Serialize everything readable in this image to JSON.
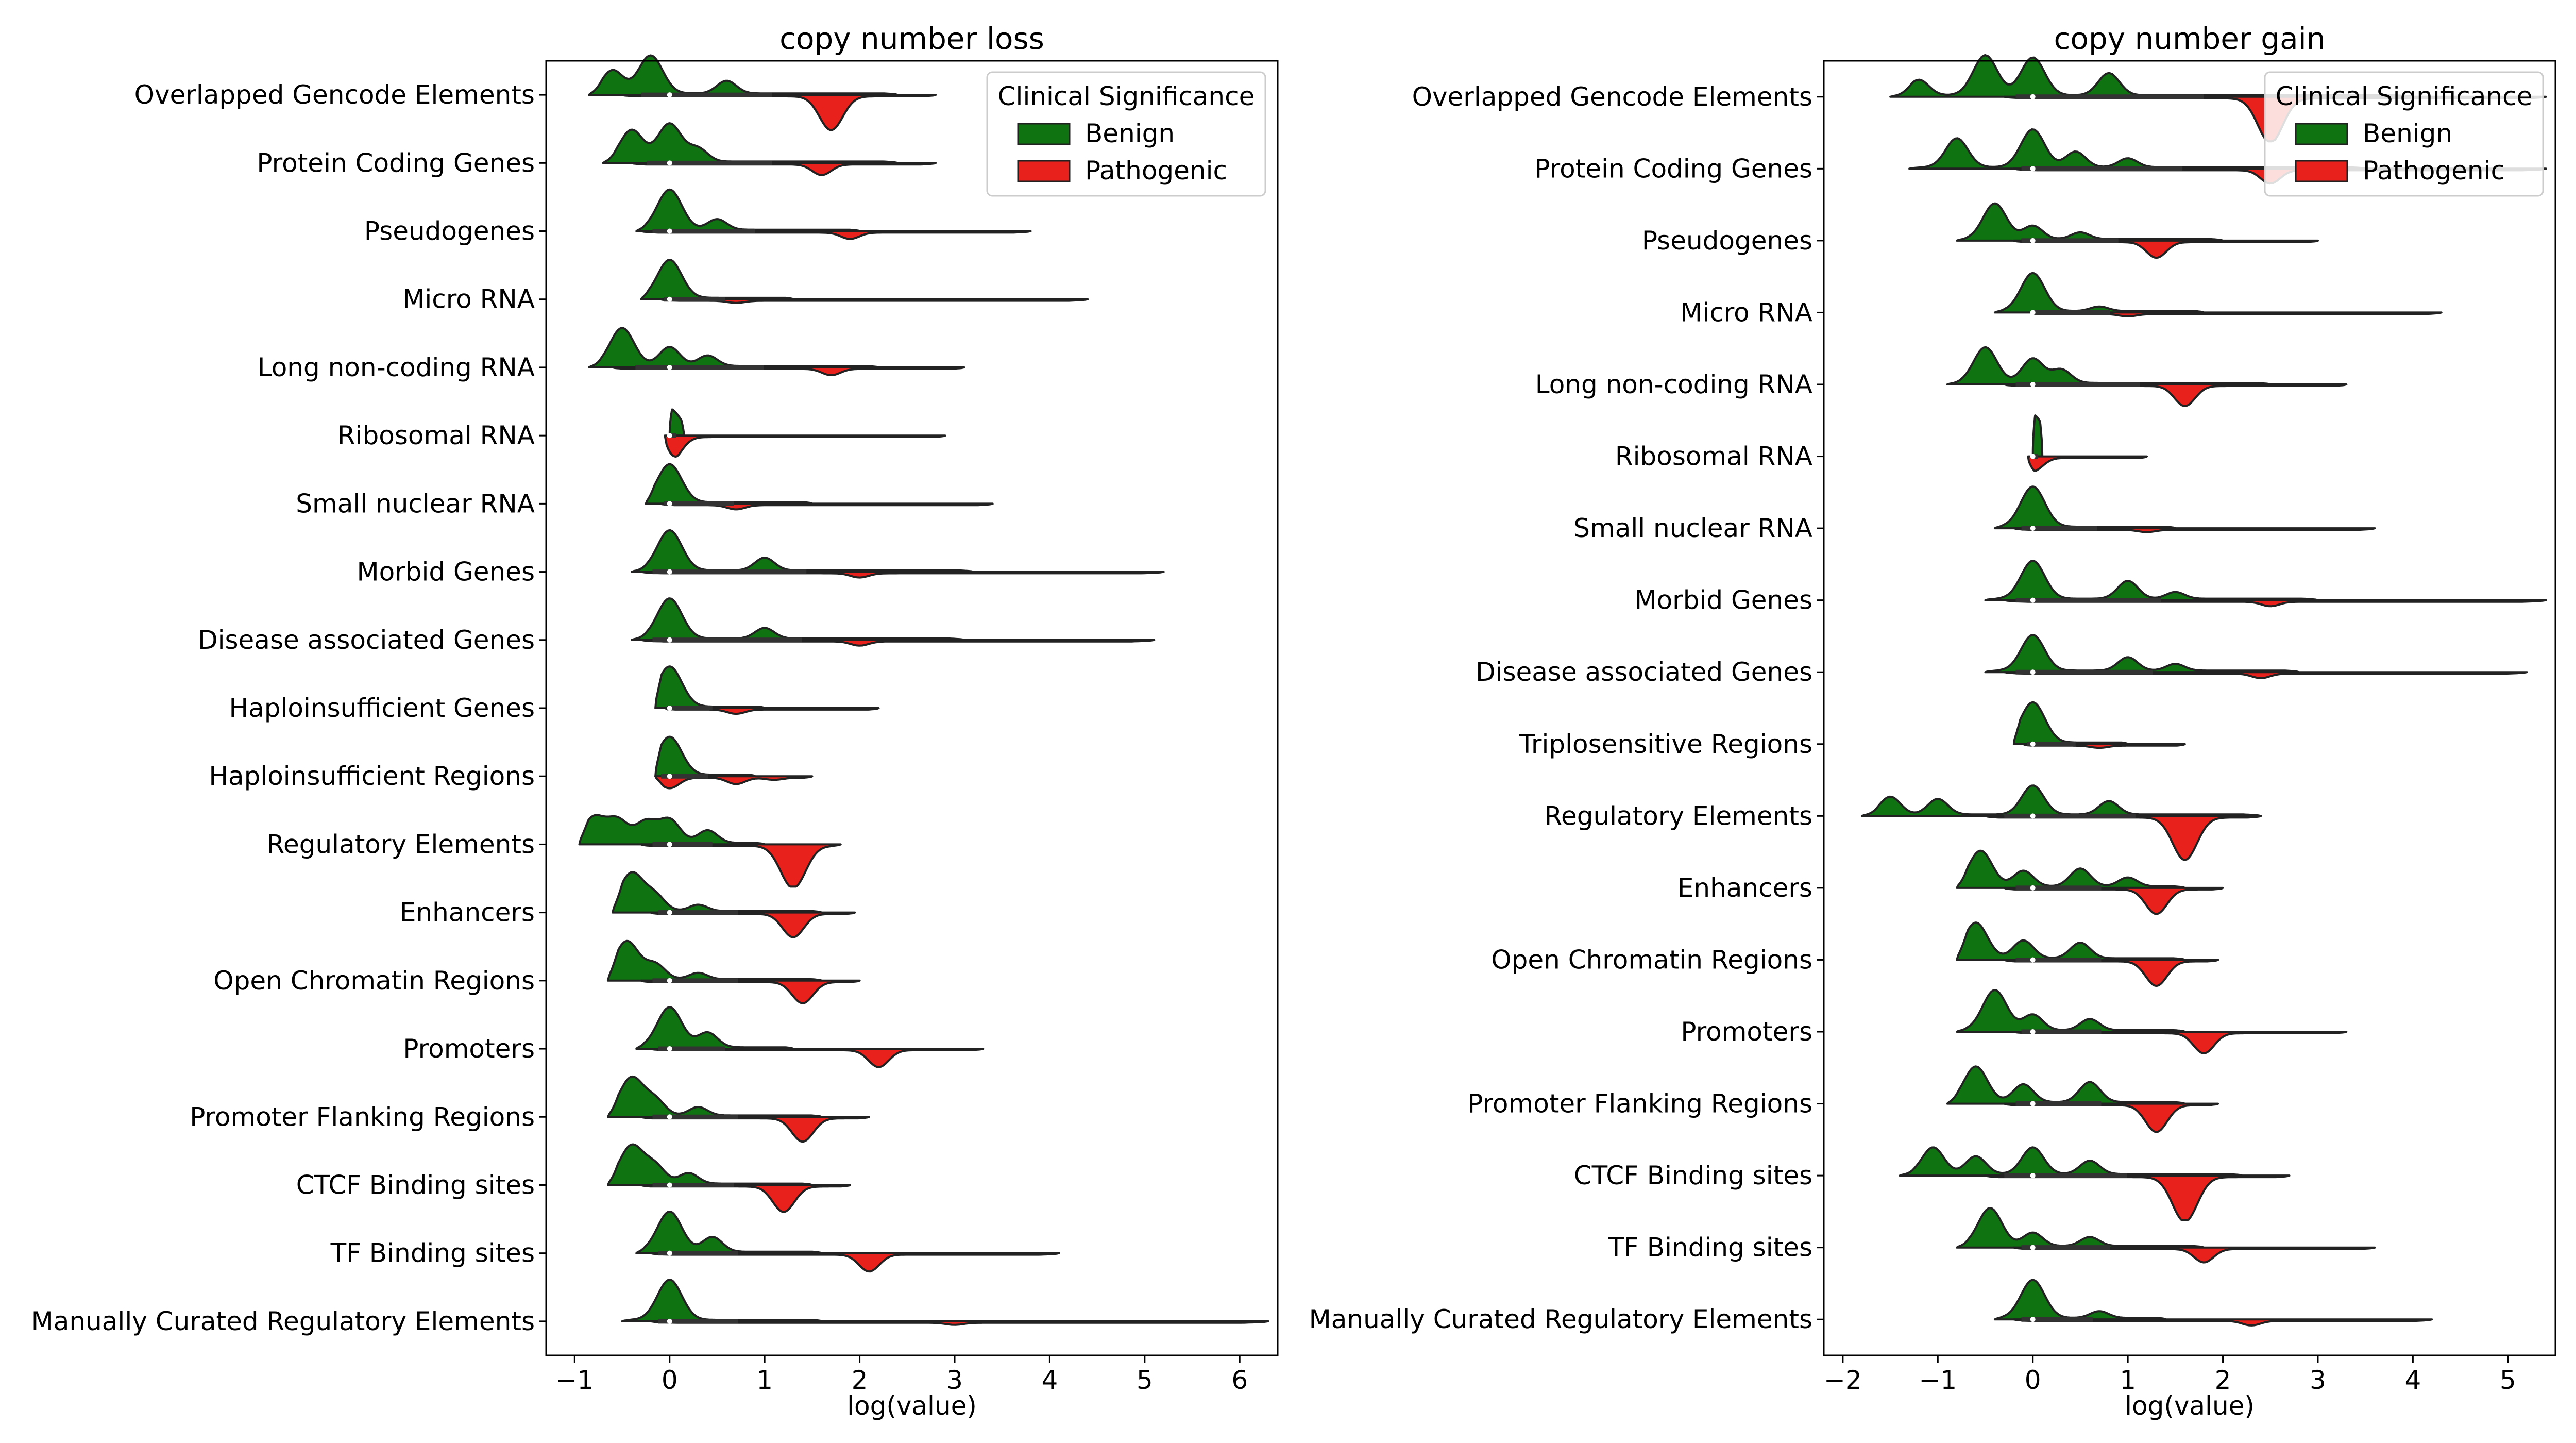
{
  "chart_data": [
    {
      "type": "violin",
      "title": "copy number loss",
      "xlabel": "log(value)",
      "ylabel": "",
      "xlim": [
        -1.3,
        6.4
      ],
      "xticks": [
        -1,
        0,
        1,
        2,
        3,
        4,
        5,
        6
      ],
      "grid": false,
      "legend": {
        "title": "Clinical Significance",
        "placement": "top-right"
      },
      "categories": [
        "Overlapped Gencode Elements",
        "Protein Coding Genes",
        "Pseudogenes",
        "Micro RNA",
        "Long non-coding RNA",
        "Ribosomal RNA",
        "Small nuclear RNA",
        "Morbid Genes",
        "Disease associated Genes",
        "Haploinsufficient Genes",
        "Haploinsufficient Regions",
        "Regulatory Elements",
        "Enhancers",
        "Open Chromatin Regions",
        "Promoters",
        "Promoter Flanking Regions",
        "CTCF Binding sites",
        "TF Binding sites",
        "Manually Curated Regulatory Elements"
      ],
      "series": [
        {
          "name": "Benign",
          "color": "#0f7311",
          "side": "upper",
          "range": [
            [
              -0.85,
              2.4
            ],
            [
              -0.7,
              2.4
            ],
            [
              -0.35,
              2.0
            ],
            [
              -0.3,
              1.3
            ],
            [
              -0.85,
              2.2
            ],
            [
              0,
              0.15
            ],
            [
              -0.25,
              1.5
            ],
            [
              -0.4,
              3.2
            ],
            [
              -0.4,
              3.1
            ],
            [
              -0.15,
              1.0
            ],
            [
              -0.15,
              0.9
            ],
            [
              -0.95,
              1.0
            ],
            [
              -0.6,
              1.6
            ],
            [
              -0.65,
              1.6
            ],
            [
              -0.35,
              1.3
            ],
            [
              -0.65,
              1.6
            ],
            [
              -0.65,
              1.5
            ],
            [
              -0.35,
              1.6
            ],
            [
              -0.5,
              1.6
            ]
          ],
          "peaks": [
            [
              [
                -0.2,
                0.9
              ],
              [
                -0.6,
                0.55
              ],
              [
                0.6,
                0.3
              ]
            ],
            [
              [
                -0.4,
                0.75
              ],
              [
                0,
                0.9
              ],
              [
                0.3,
                0.3
              ]
            ],
            [
              [
                0,
                0.95
              ],
              [
                0.5,
                0.25
              ]
            ],
            [
              [
                0,
                0.9
              ]
            ],
            [
              [
                -0.5,
                0.9
              ],
              [
                0,
                0.45
              ],
              [
                0.4,
                0.25
              ]
            ],
            [
              [
                0,
                0.6
              ]
            ],
            [
              [
                0,
                0.9
              ]
            ],
            [
              [
                0,
                0.95
              ],
              [
                1.0,
                0.3
              ]
            ],
            [
              [
                0,
                0.95
              ],
              [
                1.0,
                0.25
              ]
            ],
            [
              [
                0,
                0.95
              ]
            ],
            [
              [
                0,
                0.9
              ]
            ],
            [
              [
                -0.8,
                0.6
              ],
              [
                -0.55,
                0.55
              ],
              [
                -0.25,
                0.5
              ],
              [
                0,
                0.55
              ],
              [
                0.4,
                0.3
              ]
            ],
            [
              [
                -0.4,
                0.9
              ],
              [
                -0.15,
                0.35
              ],
              [
                0.3,
                0.15
              ]
            ],
            [
              [
                -0.45,
                0.9
              ],
              [
                -0.15,
                0.35
              ],
              [
                0.3,
                0.15
              ]
            ],
            [
              [
                0,
                0.95
              ],
              [
                0.4,
                0.35
              ]
            ],
            [
              [
                -0.4,
                0.9
              ],
              [
                -0.15,
                0.35
              ],
              [
                0.3,
                0.2
              ]
            ],
            [
              [
                -0.4,
                0.9
              ],
              [
                -0.15,
                0.4
              ],
              [
                0.2,
                0.25
              ]
            ],
            [
              [
                0,
                0.95
              ],
              [
                0.45,
                0.35
              ]
            ],
            [
              [
                0,
                0.95
              ]
            ]
          ]
        },
        {
          "name": "Pathogenic",
          "color": "#e8211c",
          "side": "lower",
          "range": [
            [
              -0.5,
              2.8
            ],
            [
              -0.4,
              2.8
            ],
            [
              -0.3,
              3.8
            ],
            [
              -0.1,
              4.4
            ],
            [
              -0.6,
              3.1
            ],
            [
              -0.05,
              2.9
            ],
            [
              -0.1,
              3.4
            ],
            [
              -0.3,
              5.2
            ],
            [
              -0.3,
              5.1
            ],
            [
              -0.05,
              2.2
            ],
            [
              -0.15,
              1.5
            ],
            [
              -0.3,
              1.8
            ],
            [
              -0.2,
              1.95
            ],
            [
              -0.3,
              2.0
            ],
            [
              -0.2,
              3.3
            ],
            [
              -0.3,
              2.1
            ],
            [
              -0.3,
              1.9
            ],
            [
              -0.2,
              4.1
            ],
            [
              -0.2,
              6.3
            ]
          ],
          "peaks": [
            [
              [
                1.7,
                0.8
              ]
            ],
            [
              [
                1.6,
                0.25
              ]
            ],
            [
              [
                1.9,
                0.15
              ]
            ],
            [
              [
                0.7,
                0.05
              ]
            ],
            [
              [
                1.7,
                0.15
              ]
            ],
            [
              [
                0,
                0.6
              ]
            ],
            [
              [
                0.7,
                0.1
              ]
            ],
            [
              [
                2.0,
                0.1
              ]
            ],
            [
              [
                2.0,
                0.1
              ]
            ],
            [
              [
                0.7,
                0.1
              ]
            ],
            [
              [
                0,
                0.25
              ],
              [
                0.7,
                0.15
              ],
              [
                1.1,
                0.05
              ]
            ],
            [
              [
                1.3,
                1.0
              ]
            ],
            [
              [
                1.3,
                0.55
              ]
            ],
            [
              [
                1.4,
                0.5
              ]
            ],
            [
              [
                2.2,
                0.4
              ]
            ],
            [
              [
                1.4,
                0.55
              ]
            ],
            [
              [
                1.2,
                0.6
              ]
            ],
            [
              [
                2.1,
                0.4
              ]
            ],
            [
              [
                3.0,
                0.05
              ]
            ]
          ]
        }
      ]
    },
    {
      "type": "violin",
      "title": "copy number gain",
      "xlabel": "log(value)",
      "ylabel": "",
      "xlim": [
        -2.2,
        5.5
      ],
      "xticks": [
        -2,
        -1,
        0,
        1,
        2,
        3,
        4,
        5
      ],
      "grid": false,
      "legend": {
        "title": "Clinical Significance",
        "placement": "top-right"
      },
      "categories": [
        "Overlapped Gencode Elements",
        "Protein Coding Genes",
        "Pseudogenes",
        "Micro RNA",
        "Long non-coding RNA",
        "Ribosomal RNA",
        "Small nuclear RNA",
        "Morbid Genes",
        "Disease associated Genes",
        "Triplosensitive Regions",
        "Regulatory Elements",
        "Enhancers",
        "Open Chromatin Regions",
        "Promoters",
        "Promoter Flanking Regions",
        "CTCF Binding sites",
        "TF Binding sites",
        "Manually Curated Regulatory Elements"
      ],
      "series": [
        {
          "name": "Benign",
          "color": "#0f7311",
          "side": "upper",
          "range": [
            [
              -1.5,
              4.0
            ],
            [
              -1.3,
              3.5
            ],
            [
              -0.8,
              2.0
            ],
            [
              -0.4,
              1.8
            ],
            [
              -0.9,
              2.5
            ],
            [
              0,
              0.1
            ],
            [
              -0.4,
              1.5
            ],
            [
              -0.5,
              3.0
            ],
            [
              -0.5,
              2.8
            ],
            [
              -0.2,
              1.0
            ],
            [
              -1.8,
              2.4
            ],
            [
              -0.8,
              1.6
            ],
            [
              -0.8,
              1.6
            ],
            [
              -0.8,
              1.6
            ],
            [
              -0.9,
              1.6
            ],
            [
              -1.4,
              2.2
            ],
            [
              -0.8,
              1.8
            ],
            [
              -0.4,
              1.4
            ]
          ],
          "peaks": [
            [
              [
                -1.2,
                0.35
              ],
              [
                -0.5,
                0.9
              ],
              [
                0,
                0.85
              ],
              [
                0.8,
                0.5
              ]
            ],
            [
              [
                -0.8,
                0.65
              ],
              [
                0,
                0.85
              ],
              [
                0.45,
                0.35
              ],
              [
                1.0,
                0.2
              ]
            ],
            [
              [
                -0.4,
                0.8
              ],
              [
                0,
                0.3
              ],
              [
                0.5,
                0.15
              ]
            ],
            [
              [
                0,
                0.85
              ],
              [
                0.7,
                0.1
              ]
            ],
            [
              [
                -0.5,
                0.8
              ],
              [
                0,
                0.55
              ],
              [
                0.3,
                0.3
              ]
            ],
            [
              [
                0,
                0.9
              ]
            ],
            [
              [
                0,
                0.9
              ]
            ],
            [
              [
                0,
                0.85
              ],
              [
                1.0,
                0.4
              ],
              [
                1.5,
                0.15
              ]
            ],
            [
              [
                0,
                0.8
              ],
              [
                1.0,
                0.3
              ],
              [
                1.5,
                0.15
              ]
            ],
            [
              [
                0,
                0.9
              ]
            ],
            [
              [
                -1.5,
                0.4
              ],
              [
                -1.0,
                0.35
              ],
              [
                0,
                0.65
              ],
              [
                0.8,
                0.3
              ]
            ],
            [
              [
                -0.55,
                0.8
              ],
              [
                -0.1,
                0.35
              ],
              [
                0.5,
                0.4
              ],
              [
                1.0,
                0.2
              ]
            ],
            [
              [
                -0.6,
                0.8
              ],
              [
                -0.1,
                0.4
              ],
              [
                0.5,
                0.35
              ]
            ],
            [
              [
                -0.4,
                0.9
              ],
              [
                0,
                0.35
              ],
              [
                0.6,
                0.25
              ]
            ],
            [
              [
                -0.6,
                0.8
              ],
              [
                -0.1,
                0.4
              ],
              [
                0.6,
                0.45
              ]
            ],
            [
              [
                -1.05,
                0.6
              ],
              [
                -0.6,
                0.4
              ],
              [
                0,
                0.6
              ],
              [
                0.6,
                0.3
              ]
            ],
            [
              [
                -0.45,
                0.85
              ],
              [
                0,
                0.3
              ],
              [
                0.6,
                0.2
              ]
            ],
            [
              [
                0,
                0.85
              ],
              [
                0.7,
                0.15
              ]
            ]
          ]
        },
        {
          "name": "Pathogenic",
          "color": "#e8211c",
          "side": "lower",
          "range": [
            [
              -0.3,
              5.4
            ],
            [
              -0.2,
              5.4
            ],
            [
              -0.2,
              3.0
            ],
            [
              0,
              4.3
            ],
            [
              -0.3,
              3.3
            ],
            [
              -0.05,
              1.2
            ],
            [
              -0.2,
              3.6
            ],
            [
              -0.3,
              5.4
            ],
            [
              -0.3,
              5.2
            ],
            [
              -0.1,
              1.6
            ],
            [
              -0.5,
              2.4
            ],
            [
              -0.3,
              2.0
            ],
            [
              -0.3,
              1.95
            ],
            [
              -0.2,
              3.3
            ],
            [
              -0.3,
              1.95
            ],
            [
              -0.5,
              2.7
            ],
            [
              -0.2,
              3.6
            ],
            [
              -0.2,
              4.2
            ]
          ],
          "peaks": [
            [
              [
                2.5,
                1.0
              ]
            ],
            [
              [
                2.5,
                0.3
              ]
            ],
            [
              [
                1.3,
                0.35
              ]
            ],
            [
              [
                1.0,
                0.05
              ]
            ],
            [
              [
                1.6,
                0.45
              ]
            ],
            [
              [
                0,
                0.3
              ]
            ],
            [
              [
                1.2,
                0.05
              ]
            ],
            [
              [
                2.5,
                0.1
              ]
            ],
            [
              [
                2.4,
                0.1
              ]
            ],
            [
              [
                0.7,
                0.05
              ]
            ],
            [
              [
                1.6,
                0.95
              ]
            ],
            [
              [
                1.3,
                0.55
              ]
            ],
            [
              [
                1.3,
                0.55
              ]
            ],
            [
              [
                1.8,
                0.45
              ]
            ],
            [
              [
                1.3,
                0.6
              ]
            ],
            [
              [
                1.6,
                1.0
              ]
            ],
            [
              [
                1.8,
                0.3
              ]
            ],
            [
              [
                2.3,
                0.1
              ]
            ]
          ]
        }
      ]
    }
  ]
}
